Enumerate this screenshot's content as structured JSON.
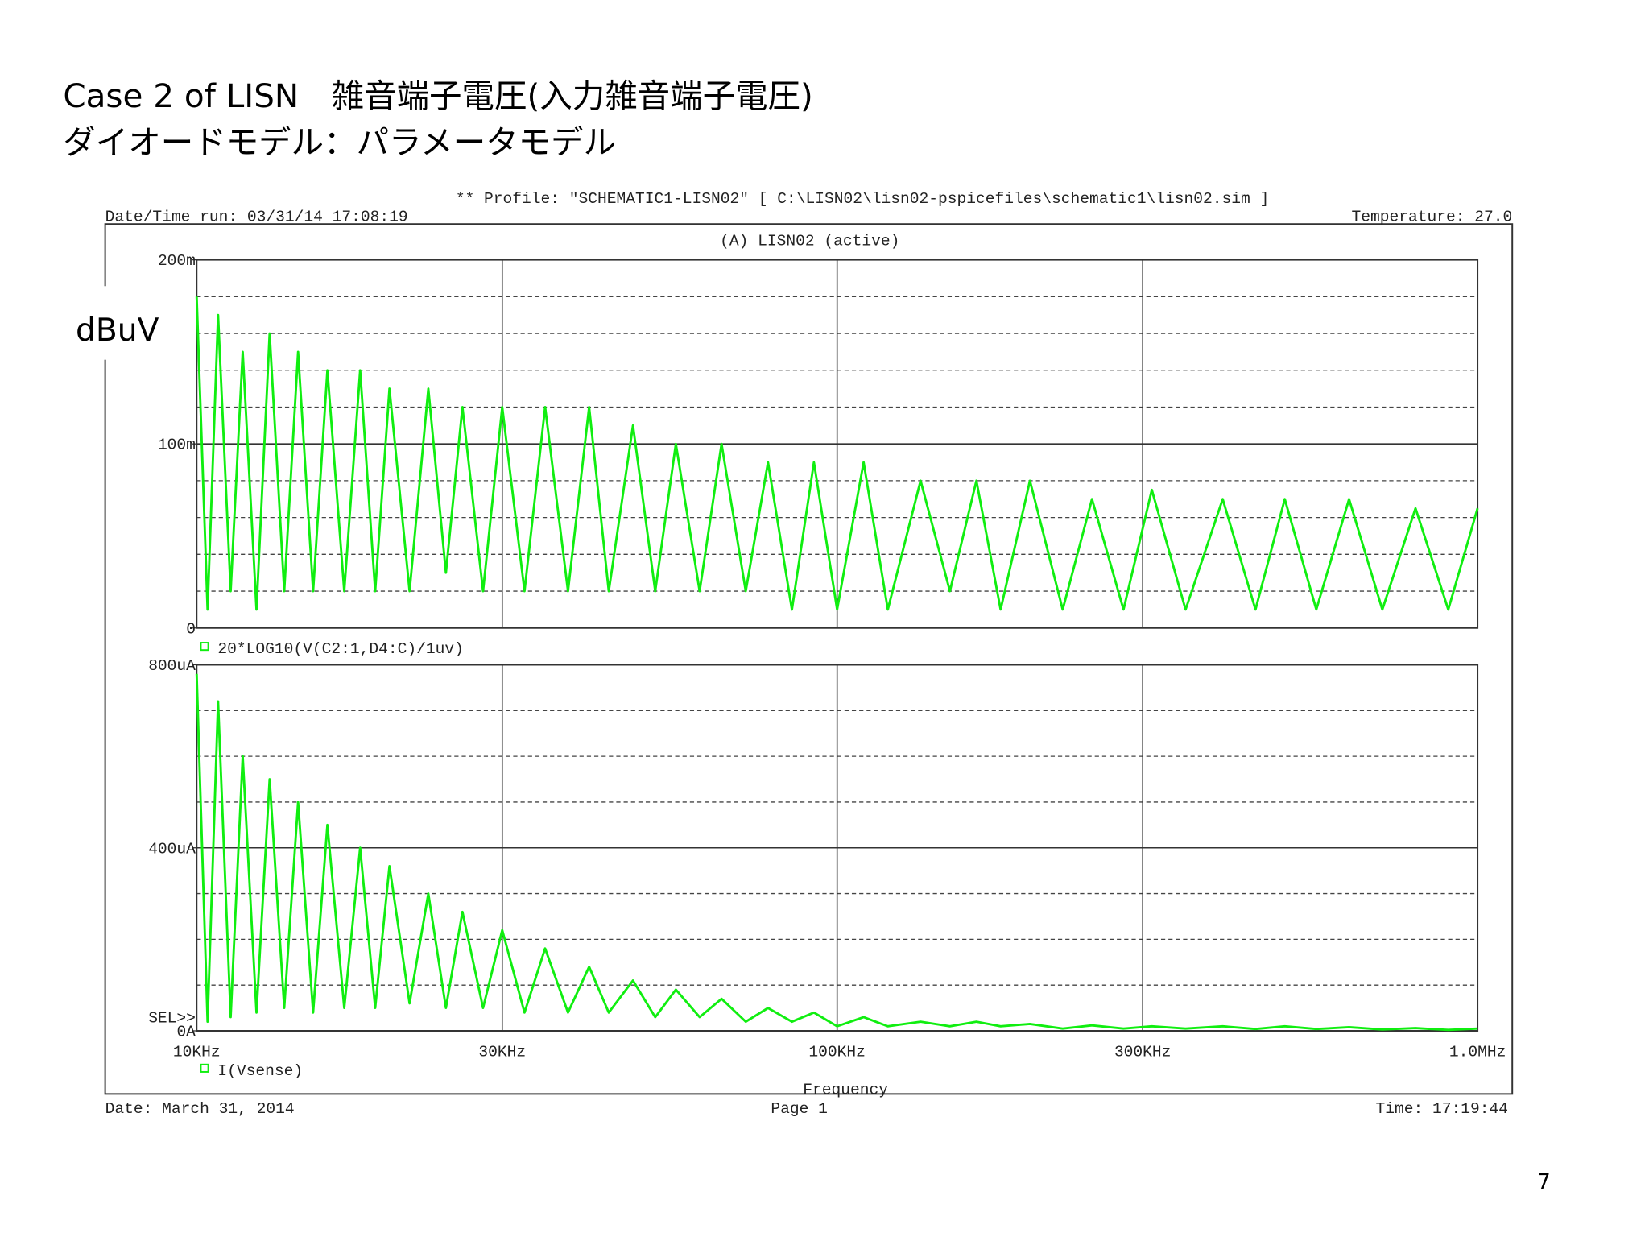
{
  "slide": {
    "title_line1": "Case 2 of LISN　雑音端子電圧(入力雑音端子電圧)",
    "title_line2": "ダイオードモデル：パラメータモデル",
    "page_number": "7"
  },
  "plot_header": {
    "profile": "** Profile: \"SCHEMATIC1-LISN02\"  [ C:\\LISN02\\lisn02-pspicefiles\\schematic1\\lisn02.sim ]",
    "date_time_run": "Date/Time run: 03/31/14 17:08:19",
    "temperature": "Temperature: 27.0",
    "plot_title": "(A) LISN02 (active)"
  },
  "plot_footer": {
    "date": "Date: March 31, 2014",
    "page": "Page 1",
    "time": "Time: 17:19:44"
  },
  "chart_data": [
    {
      "type": "line",
      "ylabel": "dBuV",
      "log_x": true,
      "xlim": [
        10000,
        1000000
      ],
      "xticks": [
        10000,
        30000,
        100000,
        300000,
        1000000
      ],
      "ylim": [
        0,
        0.2
      ],
      "yticks": [
        0,
        {
          "value": 0.1,
          "label": "100m"
        },
        {
          "value": 0.2,
          "label": "200m"
        }
      ],
      "yminor": [
        0.02,
        0.04,
        0.06,
        0.08,
        0.12,
        0.14,
        0.16,
        0.18
      ],
      "x": [
        10000,
        10400,
        10800,
        11300,
        11800,
        12400,
        13000,
        13700,
        14400,
        15200,
        16000,
        17000,
        18000,
        19000,
        20000,
        21500,
        23000,
        24500,
        26000,
        28000,
        30000,
        32500,
        35000,
        38000,
        41000,
        44000,
        48000,
        52000,
        56000,
        61000,
        66000,
        72000,
        78000,
        85000,
        92000,
        100000,
        110000,
        120000,
        135000,
        150000,
        165000,
        180000,
        200000,
        225000,
        250000,
        280000,
        310000,
        350000,
        400000,
        450000,
        500000,
        560000,
        630000,
        710000,
        800000,
        900000,
        1000000
      ],
      "series": [
        {
          "name": "20*LOG10(V(C2:1,D4:C)/1uv)",
          "color": "#10ee10",
          "values": [
            0.18,
            0.01,
            0.17,
            0.02,
            0.15,
            0.01,
            0.16,
            0.02,
            0.15,
            0.02,
            0.14,
            0.02,
            0.14,
            0.02,
            0.13,
            0.02,
            0.13,
            0.03,
            0.12,
            0.02,
            0.12,
            0.02,
            0.12,
            0.02,
            0.12,
            0.02,
            0.11,
            0.02,
            0.1,
            0.02,
            0.1,
            0.02,
            0.09,
            0.01,
            0.09,
            0.01,
            0.09,
            0.01,
            0.08,
            0.02,
            0.08,
            0.01,
            0.08,
            0.01,
            0.07,
            0.01,
            0.075,
            0.01,
            0.07,
            0.01,
            0.07,
            0.01,
            0.07,
            0.01,
            0.065,
            0.01,
            0.065
          ]
        }
      ]
    },
    {
      "type": "line",
      "xlabel": "Frequency",
      "selection_marker": "SEL>>",
      "log_x": true,
      "xlim": [
        10000,
        1000000
      ],
      "xticks": [
        {
          "value": 10000,
          "label": "10KHz"
        },
        {
          "value": 30000,
          "label": "30KHz"
        },
        {
          "value": 100000,
          "label": "100KHz"
        },
        {
          "value": 300000,
          "label": "300KHz"
        },
        {
          "value": 1000000,
          "label": "1.0MHz"
        }
      ],
      "ylim": [
        0,
        0.0008
      ],
      "yticks": [
        {
          "value": 0,
          "label": "0A"
        },
        {
          "value": 0.0004,
          "label": "400uA"
        },
        {
          "value": 0.0008,
          "label": "800uA"
        }
      ],
      "yminor": [
        0.0001,
        0.0002,
        0.0003,
        0.0005,
        0.0006,
        0.0007
      ],
      "x": [
        10000,
        10400,
        10800,
        11300,
        11800,
        12400,
        13000,
        13700,
        14400,
        15200,
        16000,
        17000,
        18000,
        19000,
        20000,
        21500,
        23000,
        24500,
        26000,
        28000,
        30000,
        32500,
        35000,
        38000,
        41000,
        44000,
        48000,
        52000,
        56000,
        61000,
        66000,
        72000,
        78000,
        85000,
        92000,
        100000,
        110000,
        120000,
        135000,
        150000,
        165000,
        180000,
        200000,
        225000,
        250000,
        280000,
        310000,
        350000,
        400000,
        450000,
        500000,
        560000,
        630000,
        710000,
        800000,
        900000,
        1000000
      ],
      "series": [
        {
          "name": "I(Vsense)",
          "color": "#10ee10",
          "values": [
            0.00078,
            2e-05,
            0.00072,
            3e-05,
            0.0006,
            4e-05,
            0.00055,
            5e-05,
            0.0005,
            4e-05,
            0.00045,
            5e-05,
            0.0004,
            5e-05,
            0.00036,
            6e-05,
            0.0003,
            5e-05,
            0.00026,
            5e-05,
            0.00022,
            4e-05,
            0.00018,
            4e-05,
            0.00014,
            4e-05,
            0.00011,
            3e-05,
            9e-05,
            3e-05,
            7e-05,
            2e-05,
            5e-05,
            2e-05,
            4e-05,
            1e-05,
            3e-05,
            1e-05,
            2e-05,
            1e-05,
            2e-05,
            1e-05,
            1.5e-05,
            5e-06,
            1.2e-05,
            5e-06,
            1e-05,
            5e-06,
            1e-05,
            4e-06,
            1e-05,
            4e-06,
            8e-06,
            3e-06,
            6e-06,
            2e-06,
            5e-06
          ]
        }
      ]
    }
  ]
}
